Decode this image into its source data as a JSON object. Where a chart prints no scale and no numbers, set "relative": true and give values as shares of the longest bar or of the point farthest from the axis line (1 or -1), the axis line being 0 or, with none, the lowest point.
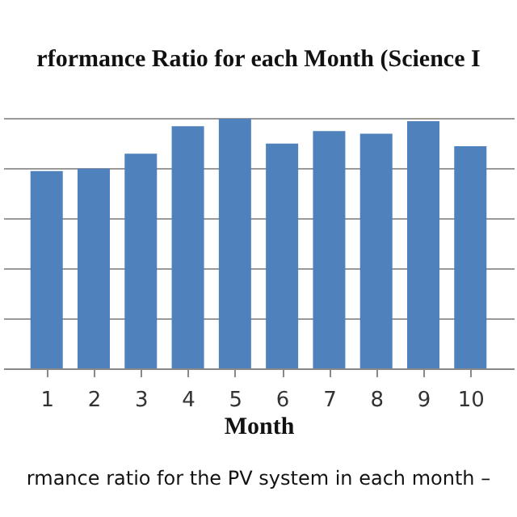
{
  "chart_data": {
    "type": "bar",
    "title": "rformance Ratio for each Month (Science I",
    "xlabel": "Month",
    "relative": true,
    "grid": "y",
    "color": "#4f81bd",
    "categories": [
      "1",
      "2",
      "3",
      "4",
      "5",
      "6",
      "7",
      "8",
      "9",
      "10"
    ],
    "values": [
      0.79,
      0.8,
      0.86,
      0.97,
      1,
      0.9,
      0.95,
      0.94,
      0.99,
      0.89
    ],
    "annotations": [
      "rmance ratio for the PV system in each month –"
    ]
  }
}
